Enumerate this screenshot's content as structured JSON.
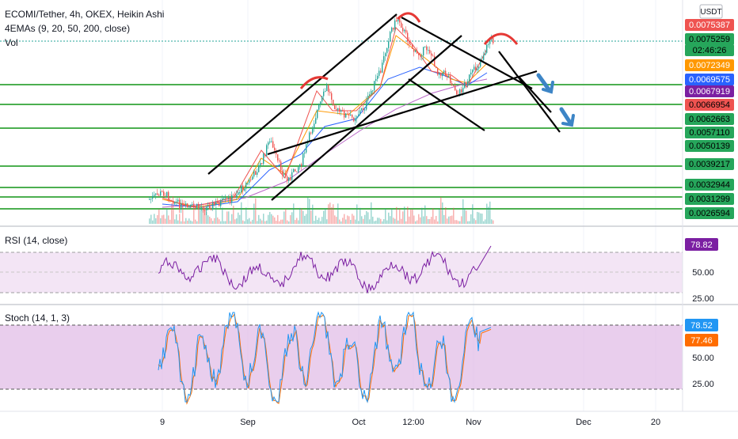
{
  "header": {
    "symbol_line": "ECOMI/Tether, 4h, OKEX, Heikin Ashi",
    "indicator_line": "4EMAs (9, 20, 50, 200, close)",
    "volume_line": "Vol",
    "currency_button": "USDT"
  },
  "price_labels": [
    {
      "text": "0.0075387",
      "bg": "#ef5350",
      "fg": "#ffffff"
    },
    {
      "text": "0.0075259",
      "bg": "#26a65b",
      "fg": "#000000"
    },
    {
      "text": "02:46:26",
      "bg": "#26a65b",
      "fg": "#000000"
    },
    {
      "text": "0.0072349",
      "bg": "#ff9800",
      "fg": "#ffffff"
    },
    {
      "text": "0.0069575",
      "bg": "#2962ff",
      "fg": "#ffffff"
    },
    {
      "text": "0.0067919",
      "bg": "#7b1fa2",
      "fg": "#ffffff"
    },
    {
      "text": "0.0066954",
      "bg": "#ef5350",
      "fg": "#000000"
    },
    {
      "text": "0.0062663",
      "bg": "#26a65b",
      "fg": "#000000"
    },
    {
      "text": "0.0057110",
      "bg": "#26a65b",
      "fg": "#000000"
    },
    {
      "text": "0.0050139",
      "bg": "#26a65b",
      "fg": "#000000"
    },
    {
      "text": "0.0039217",
      "bg": "#26a65b",
      "fg": "#000000"
    },
    {
      "text": "0.0032944",
      "bg": "#26a65b",
      "fg": "#000000"
    },
    {
      "text": "0.0031299",
      "bg": "#26a65b",
      "fg": "#000000"
    },
    {
      "text": "0.0026594",
      "bg": "#26a65b",
      "fg": "#000000"
    }
  ],
  "rsi": {
    "title": "RSI (14, close)",
    "value_label": "78.82",
    "value_color": "#7b1fa2",
    "axis_labels": [
      "50.00",
      "25.00"
    ]
  },
  "stoch": {
    "title": "Stoch (14, 1, 3)",
    "k_label": "78.52",
    "d_label": "77.46",
    "k_color": "#2196f3",
    "d_color": "#ff6d00",
    "axis_labels": [
      "50.00",
      "25.00"
    ]
  },
  "time_axis": [
    "9",
    "Sep",
    "Oct",
    "12:00",
    "Nov",
    "Dec",
    "20"
  ],
  "colors": {
    "support_line": "#4caf50",
    "up_candle": "#26a69a",
    "down_candle": "#ef5350",
    "annotation_red": "#e53935",
    "arrow_blue": "#3d85c6",
    "pane_fill": "#e1bee7"
  }
}
